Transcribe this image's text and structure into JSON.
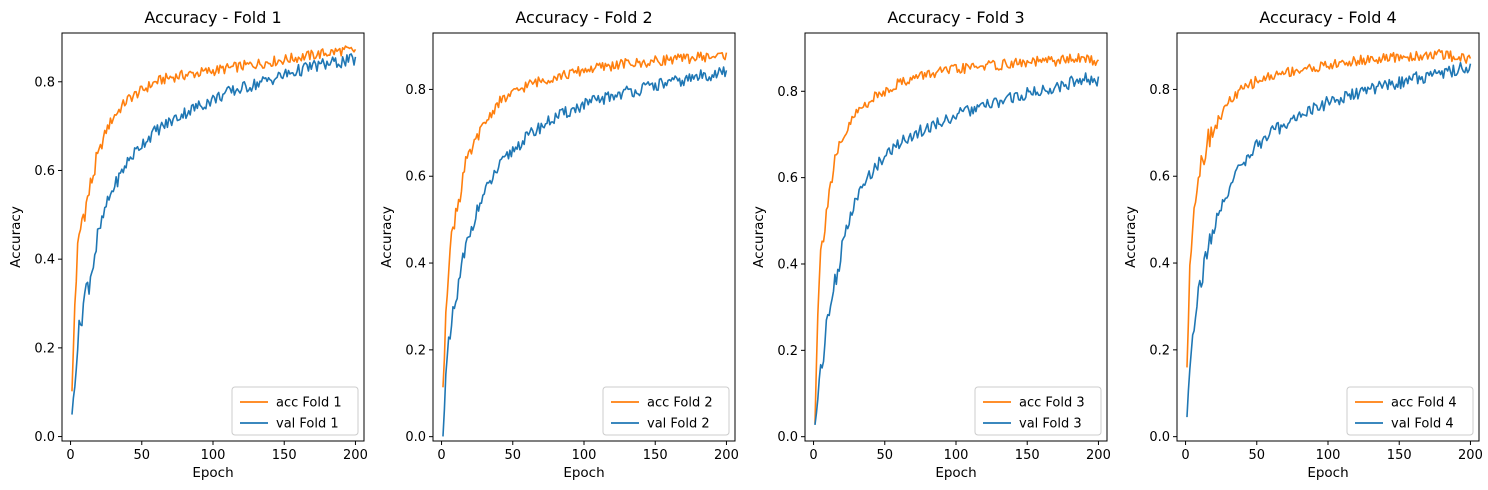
{
  "chart_data": [
    {
      "type": "line",
      "title": "Accuracy - Fold 1",
      "xlabel": "Epoch",
      "ylabel": "Accuracy",
      "xlim": [
        -6,
        206
      ],
      "ylim": [
        -0.01,
        0.91
      ],
      "xticks": [
        0,
        50,
        100,
        150,
        200
      ],
      "yticks": [
        0.0,
        0.2,
        0.4,
        0.6,
        0.8
      ],
      "grid": false,
      "legend_position": "lower-right",
      "series": [
        {
          "name": "acc Fold 1",
          "color": "#ff7f0e",
          "x": [
            1,
            3,
            5,
            8,
            10,
            13,
            15,
            20,
            25,
            30,
            40,
            50,
            60,
            70,
            80,
            90,
            100,
            110,
            120,
            130,
            140,
            150,
            160,
            170,
            180,
            190,
            200
          ],
          "values": [
            0.09,
            0.3,
            0.42,
            0.49,
            0.51,
            0.55,
            0.58,
            0.64,
            0.69,
            0.72,
            0.76,
            0.78,
            0.8,
            0.81,
            0.815,
            0.82,
            0.825,
            0.83,
            0.835,
            0.84,
            0.845,
            0.85,
            0.855,
            0.86,
            0.865,
            0.87,
            0.87
          ]
        },
        {
          "name": "val Fold 1",
          "color": "#1f77b4",
          "x": [
            1,
            3,
            5,
            8,
            10,
            13,
            15,
            20,
            25,
            30,
            40,
            50,
            60,
            70,
            80,
            90,
            100,
            110,
            120,
            130,
            140,
            150,
            160,
            170,
            180,
            190,
            200
          ],
          "values": [
            0.03,
            0.14,
            0.21,
            0.28,
            0.32,
            0.35,
            0.38,
            0.46,
            0.52,
            0.56,
            0.62,
            0.66,
            0.69,
            0.71,
            0.73,
            0.745,
            0.76,
            0.775,
            0.785,
            0.795,
            0.805,
            0.815,
            0.825,
            0.835,
            0.84,
            0.845,
            0.85
          ]
        }
      ]
    },
    {
      "type": "line",
      "title": "Accuracy - Fold 2",
      "xlabel": "Epoch",
      "ylabel": "Accuracy",
      "xlim": [
        -6,
        206
      ],
      "ylim": [
        -0.01,
        0.93
      ],
      "xticks": [
        0,
        50,
        100,
        150,
        200
      ],
      "yticks": [
        0.0,
        0.2,
        0.4,
        0.6,
        0.8
      ],
      "grid": false,
      "legend_position": "lower-right",
      "series": [
        {
          "name": "acc Fold 2",
          "color": "#ff7f0e",
          "x": [
            1,
            3,
            5,
            8,
            10,
            13,
            15,
            20,
            25,
            30,
            40,
            50,
            60,
            70,
            80,
            90,
            100,
            110,
            120,
            130,
            140,
            150,
            160,
            170,
            180,
            190,
            200
          ],
          "values": [
            0.09,
            0.3,
            0.4,
            0.48,
            0.52,
            0.56,
            0.6,
            0.65,
            0.69,
            0.72,
            0.77,
            0.79,
            0.81,
            0.82,
            0.83,
            0.835,
            0.845,
            0.85,
            0.855,
            0.86,
            0.86,
            0.865,
            0.87,
            0.87,
            0.875,
            0.875,
            0.88
          ]
        },
        {
          "name": "val Fold 2",
          "color": "#1f77b4",
          "x": [
            1,
            3,
            5,
            8,
            10,
            13,
            15,
            20,
            25,
            30,
            40,
            50,
            60,
            70,
            80,
            90,
            100,
            110,
            120,
            130,
            140,
            150,
            160,
            170,
            180,
            190,
            200
          ],
          "values": [
            0.03,
            0.13,
            0.2,
            0.27,
            0.31,
            0.36,
            0.4,
            0.47,
            0.52,
            0.56,
            0.62,
            0.66,
            0.69,
            0.715,
            0.735,
            0.75,
            0.765,
            0.775,
            0.785,
            0.795,
            0.8,
            0.81,
            0.815,
            0.82,
            0.83,
            0.835,
            0.84
          ]
        }
      ]
    },
    {
      "type": "line",
      "title": "Accuracy - Fold 3",
      "xlabel": "Epoch",
      "ylabel": "Accuracy",
      "xlim": [
        -6,
        206
      ],
      "ylim": [
        -0.01,
        0.935
      ],
      "xticks": [
        0,
        50,
        100,
        150,
        200
      ],
      "yticks": [
        0.0,
        0.2,
        0.4,
        0.6,
        0.8
      ],
      "grid": false,
      "legend_position": "lower-right",
      "series": [
        {
          "name": "acc Fold 3",
          "color": "#ff7f0e",
          "x": [
            1,
            3,
            5,
            8,
            10,
            13,
            15,
            20,
            25,
            30,
            40,
            50,
            60,
            70,
            80,
            90,
            100,
            110,
            120,
            130,
            140,
            150,
            160,
            170,
            180,
            190,
            200
          ],
          "values": [
            0.05,
            0.3,
            0.42,
            0.5,
            0.55,
            0.6,
            0.63,
            0.68,
            0.72,
            0.75,
            0.78,
            0.8,
            0.82,
            0.83,
            0.84,
            0.845,
            0.85,
            0.855,
            0.86,
            0.86,
            0.865,
            0.865,
            0.87,
            0.87,
            0.875,
            0.875,
            0.87
          ]
        },
        {
          "name": "val Fold 3",
          "color": "#1f77b4",
          "x": [
            1,
            3,
            5,
            8,
            10,
            13,
            15,
            20,
            25,
            30,
            40,
            50,
            60,
            70,
            80,
            90,
            100,
            110,
            120,
            130,
            140,
            150,
            160,
            170,
            180,
            190,
            200
          ],
          "values": [
            0.03,
            0.1,
            0.16,
            0.22,
            0.27,
            0.32,
            0.36,
            0.44,
            0.5,
            0.55,
            0.61,
            0.65,
            0.68,
            0.7,
            0.715,
            0.73,
            0.745,
            0.755,
            0.765,
            0.775,
            0.785,
            0.795,
            0.8,
            0.81,
            0.82,
            0.83,
            0.82
          ]
        }
      ]
    },
    {
      "type": "line",
      "title": "Accuracy - Fold 4",
      "xlabel": "Epoch",
      "ylabel": "Accuracy",
      "xlim": [
        -6,
        206
      ],
      "ylim": [
        -0.01,
        0.93
      ],
      "xticks": [
        0,
        50,
        100,
        150,
        200
      ],
      "yticks": [
        0.0,
        0.2,
        0.4,
        0.6,
        0.8
      ],
      "grid": false,
      "legend_position": "lower-right",
      "series": [
        {
          "name": "acc Fold 4",
          "color": "#ff7f0e",
          "x": [
            1,
            3,
            5,
            8,
            10,
            13,
            15,
            20,
            25,
            30,
            40,
            50,
            60,
            70,
            80,
            90,
            100,
            110,
            120,
            130,
            140,
            150,
            160,
            170,
            180,
            190,
            200
          ],
          "values": [
            0.14,
            0.4,
            0.5,
            0.58,
            0.62,
            0.65,
            0.68,
            0.71,
            0.74,
            0.77,
            0.8,
            0.82,
            0.83,
            0.84,
            0.845,
            0.85,
            0.855,
            0.86,
            0.865,
            0.87,
            0.87,
            0.875,
            0.875,
            0.88,
            0.88,
            0.875,
            0.87
          ]
        },
        {
          "name": "val Fold 4",
          "color": "#1f77b4",
          "x": [
            1,
            3,
            5,
            8,
            10,
            13,
            15,
            20,
            25,
            30,
            40,
            50,
            60,
            70,
            80,
            90,
            100,
            110,
            120,
            130,
            140,
            150,
            160,
            170,
            180,
            190,
            200
          ],
          "values": [
            0.04,
            0.17,
            0.25,
            0.31,
            0.35,
            0.39,
            0.42,
            0.48,
            0.53,
            0.57,
            0.63,
            0.67,
            0.7,
            0.72,
            0.74,
            0.755,
            0.77,
            0.78,
            0.79,
            0.8,
            0.81,
            0.815,
            0.825,
            0.83,
            0.84,
            0.845,
            0.855
          ]
        }
      ]
    }
  ]
}
